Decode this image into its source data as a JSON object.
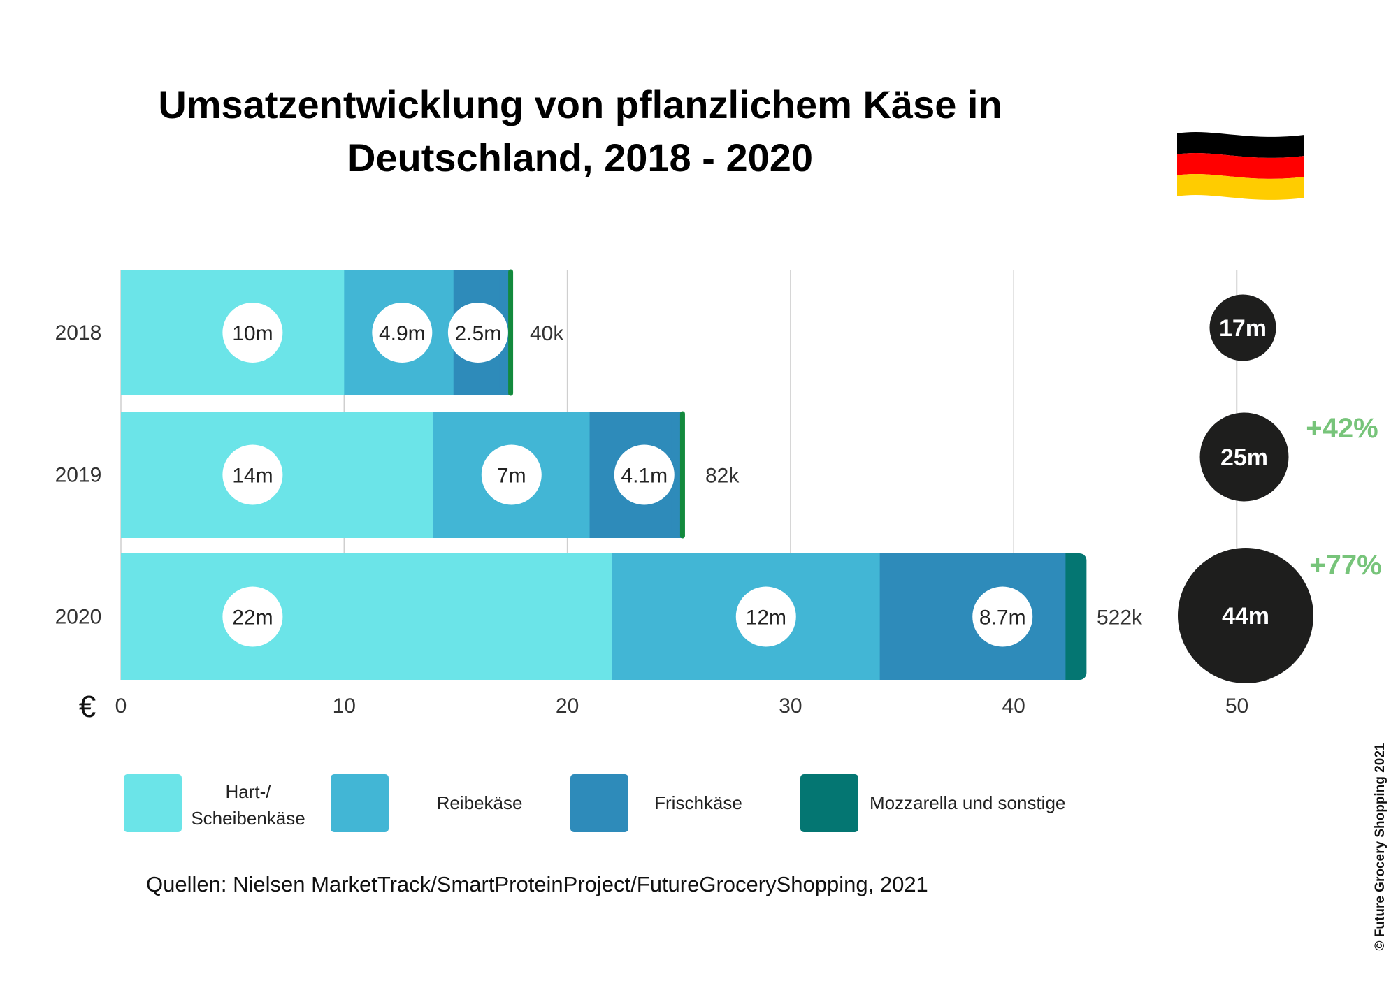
{
  "chart_data": {
    "type": "bar",
    "orientation": "horizontal",
    "stacked": true,
    "title": "Umsatzentwicklung von pflanzlichem Käse in Deutschland, 2018 - 2020",
    "title_lines": [
      "Umsatzentwicklung von pflanzlichem Käse in",
      "Deutschland, 2018 - 2020"
    ],
    "categories": [
      "2018",
      "2019",
      "2020"
    ],
    "currency_label": "€",
    "xlim": [
      0,
      50
    ],
    "xticks": [
      "0",
      "10",
      "20",
      "30",
      "40",
      "50"
    ],
    "grid": true,
    "series": [
      {
        "name": "Hart-/ Scheibenkäse",
        "name_lines": [
          "Hart-/",
          "Scheibenkäse"
        ],
        "color": "#6be4e8",
        "values": [
          10,
          14,
          22
        ],
        "labels": [
          "10m",
          "14m",
          "22m"
        ]
      },
      {
        "name": "Reibekäse",
        "color": "#42b6d5",
        "values": [
          4.9,
          7,
          12
        ],
        "labels": [
          "4.9m",
          "7m",
          "12m"
        ]
      },
      {
        "name": "Frischkäse",
        "color": "#2e8bba",
        "values": [
          2.5,
          4.1,
          8.7
        ],
        "labels": [
          "2.5m",
          "4.1m",
          "8.7m"
        ]
      },
      {
        "name": "Mozzarella und sonstige",
        "color": "#047672",
        "values": [
          0.04,
          0.082,
          0.522
        ],
        "labels": [
          "40k",
          "82k",
          "522k"
        ]
      }
    ],
    "totals": {
      "values": [
        17,
        25,
        44
      ],
      "labels": [
        "17m",
        "25m",
        "44m"
      ],
      "color": "#1e1e1d"
    },
    "growth": {
      "labels": [
        "+42%",
        "+77%"
      ],
      "values": [
        42,
        77
      ],
      "color": "#77c47a"
    },
    "legend_position": "bottom"
  },
  "source": "Quellen: Nielsen MarketTrack/SmartProteinProject/FutureGroceryShopping, 2021",
  "copyright": "© Future Grocery Shopping 2021",
  "flag_colors": [
    "#000000",
    "#ff0000",
    "#ffcc00"
  ]
}
